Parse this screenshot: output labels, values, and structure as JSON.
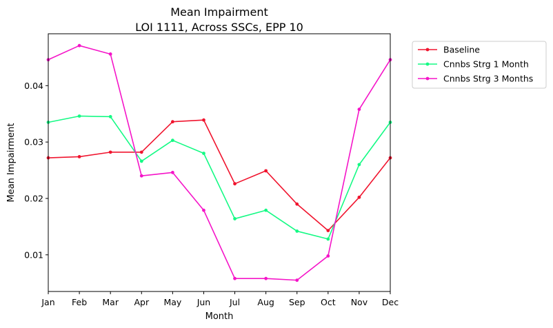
{
  "chart_data": {
    "type": "line",
    "title": "Mean Impairment",
    "subtitle": "LOI 1111, Across SSCs, EPP 10",
    "xlabel": "Month",
    "ylabel": "Mean Impairment",
    "categories": [
      "Jan",
      "Feb",
      "Mar",
      "Apr",
      "May",
      "Jun",
      "Jul",
      "Aug",
      "Sep",
      "Oct",
      "Nov",
      "Dec"
    ],
    "ylim": [
      0.0035,
      0.0492
    ],
    "yticks": [
      0.01,
      0.02,
      0.03,
      0.04
    ],
    "ytick_labels": [
      "0.01",
      "0.02",
      "0.03",
      "0.04"
    ],
    "grid": false,
    "legend_position": "outside top-right",
    "series": [
      {
        "name": "Baseline",
        "color": "#f0142e",
        "values": [
          0.0272,
          0.0274,
          0.0282,
          0.0282,
          0.0336,
          0.0339,
          0.0226,
          0.0249,
          0.019,
          0.0143,
          0.0202,
          0.0272
        ]
      },
      {
        "name": "Cnnbs Strg 1 Month",
        "color": "#14fa84",
        "values": [
          0.0335,
          0.0346,
          0.0345,
          0.0266,
          0.0303,
          0.028,
          0.0164,
          0.0179,
          0.0142,
          0.0128,
          0.026,
          0.0335
        ]
      },
      {
        "name": "Cnnbs Strg 3 Months",
        "color": "#f514c8",
        "values": [
          0.0446,
          0.0471,
          0.0456,
          0.024,
          0.0246,
          0.0179,
          0.0058,
          0.0058,
          0.0055,
          0.0098,
          0.0358,
          0.0446
        ]
      }
    ]
  }
}
